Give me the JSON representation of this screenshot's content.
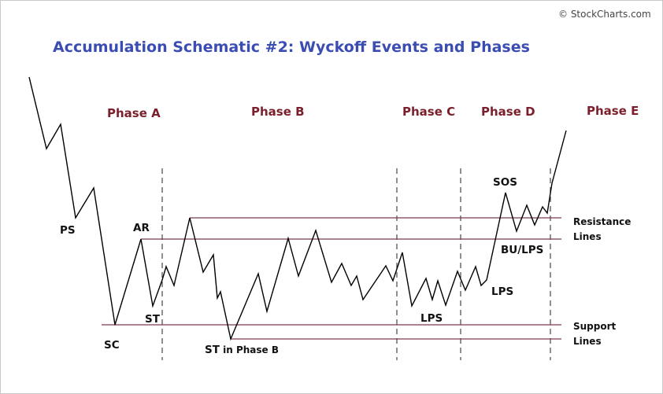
{
  "credit": "© StockCharts.com",
  "title": "Accumulation Schematic #2: Wyckoff Events and Phases",
  "phases": [
    {
      "id": "a",
      "label": "Phase A"
    },
    {
      "id": "b",
      "label": "Phase B"
    },
    {
      "id": "c",
      "label": "Phase C"
    },
    {
      "id": "d",
      "label": "Phase D"
    },
    {
      "id": "e",
      "label": "Phase E"
    }
  ],
  "events": {
    "ps": "PS",
    "sc": "SC",
    "ar": "AR",
    "st": "ST",
    "st_phase_b_main": "ST",
    "st_phase_b_suffix": " in Phase B",
    "lps_c": "LPS",
    "lps_d": "LPS",
    "sos": "SOS",
    "bu_lps": "BU/LPS"
  },
  "line_labels": {
    "resistance": [
      "Resistance",
      "Lines"
    ],
    "support": [
      "Support",
      "Lines"
    ]
  },
  "colors": {
    "title": "#3b4db3",
    "phase": "#7a1f2b",
    "horizontal_line": "#7a3b52",
    "price": "#000000",
    "divider": "#555555"
  }
}
